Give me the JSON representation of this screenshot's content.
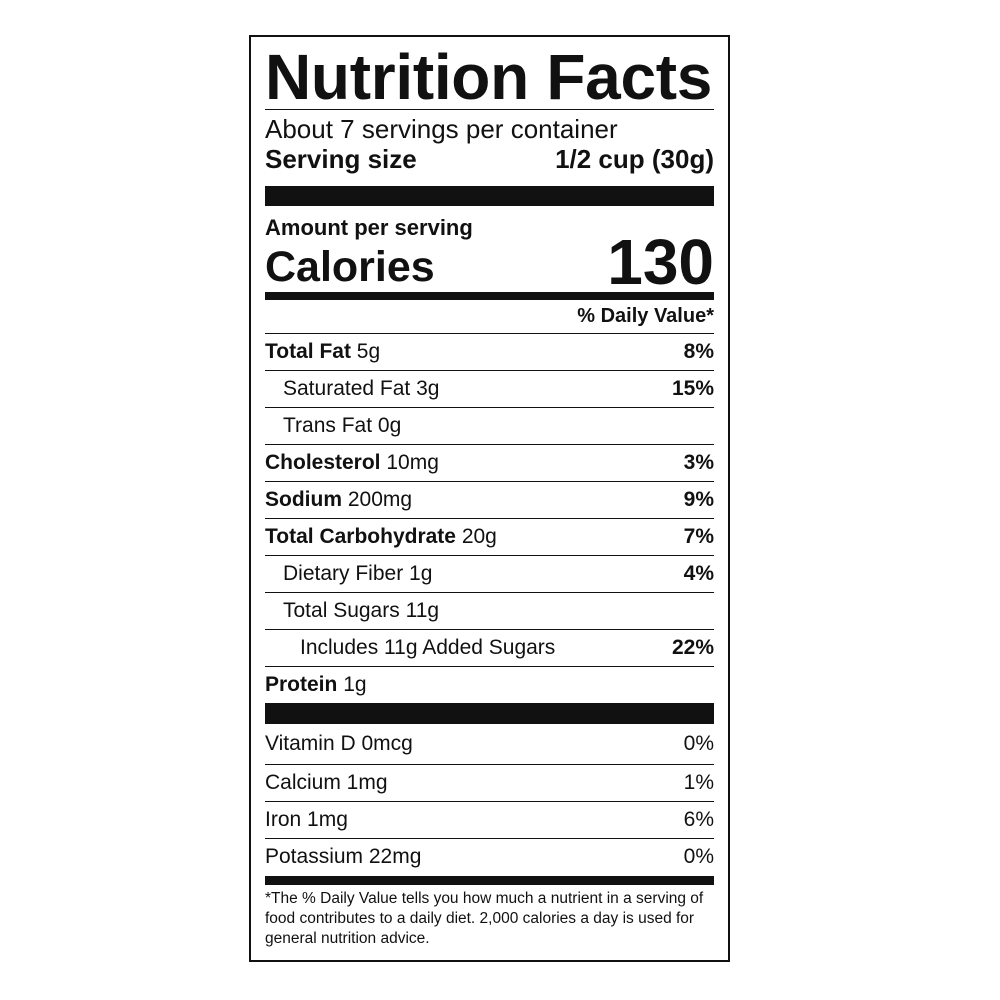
{
  "title": "Nutrition Facts",
  "servings_per_container": "About 7 servings per container",
  "serving_size": {
    "label": "Serving size",
    "value": "1/2 cup (30g)"
  },
  "amount_per_serving": "Amount per serving",
  "calories": {
    "label": "Calories",
    "value": "130"
  },
  "daily_value_header": "% Daily Value*",
  "nutrients": [
    {
      "name": "Total Fat",
      "amount": "5g",
      "dv": "8%",
      "bold": true,
      "indent": 0
    },
    {
      "name": "Saturated Fat",
      "amount": "3g",
      "dv": "15%",
      "bold": false,
      "indent": 1
    },
    {
      "name": "Trans Fat",
      "amount": "0g",
      "dv": "",
      "bold": false,
      "indent": 1
    },
    {
      "name": "Cholesterol",
      "amount": "10mg",
      "dv": "3%",
      "bold": true,
      "indent": 0
    },
    {
      "name": "Sodium",
      "amount": "200mg",
      "dv": "9%",
      "bold": true,
      "indent": 0
    },
    {
      "name": "Total Carbohydrate",
      "amount": "20g",
      "dv": "7%",
      "bold": true,
      "indent": 0
    },
    {
      "name": "Dietary Fiber",
      "amount": "1g",
      "dv": "4%",
      "bold": false,
      "indent": 1
    },
    {
      "name": "Total Sugars",
      "amount": "11g",
      "dv": "",
      "bold": false,
      "indent": 1
    },
    {
      "name": "Includes 11g Added Sugars",
      "amount": "",
      "dv": "22%",
      "bold": false,
      "indent": 2
    },
    {
      "name": "Protein",
      "amount": "1g",
      "dv": "",
      "bold": true,
      "indent": 0
    }
  ],
  "vitamins": [
    {
      "name": "Vitamin D 0mcg",
      "dv": "0%"
    },
    {
      "name": "Calcium 1mg",
      "dv": "1%"
    },
    {
      "name": "Iron 1mg",
      "dv": "6%"
    },
    {
      "name": "Potassium 22mg",
      "dv": "0%"
    }
  ],
  "footnote": "*The % Daily Value tells you how much a nutrient in a serving of food contributes to a daily diet. 2,000 calories a day is used for general nutrition advice."
}
